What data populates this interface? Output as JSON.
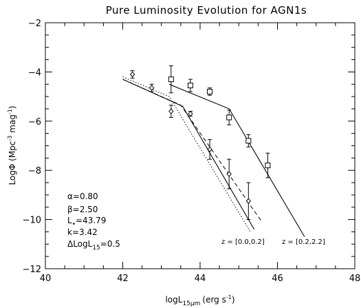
{
  "chart_data": {
    "type": "scatter",
    "title": "Pure Luminosity Evolution for AGN1s",
    "xlabel": {
      "base": "logL",
      "sub": "15μm",
      "unit": "(erg s",
      "unit_sup": "-1",
      "unit_end": ")"
    },
    "ylabel": {
      "base": "LogΦ (Mpc",
      "sup1": "-3",
      "mid": " mag",
      "sup2": "-1",
      "end": ")"
    },
    "xlim": [
      40,
      48
    ],
    "ylim": [
      -12,
      -2
    ],
    "xticks": [
      40,
      42,
      44,
      46,
      48
    ],
    "yticks": [
      -12,
      -10,
      -8,
      -6,
      -4,
      -2
    ],
    "grid": false,
    "legend": "none",
    "series": [
      {
        "name": "z = [0.0,0.2]",
        "marker": "diamond",
        "points": [
          {
            "x": 42.25,
            "y": -4.1,
            "err": 0.15
          },
          {
            "x": 42.75,
            "y": -4.65,
            "err": 0.15
          },
          {
            "x": 43.25,
            "y": -5.6,
            "err": 0.25
          },
          {
            "x": 43.75,
            "y": -5.7,
            "err": 0.1
          },
          {
            "x": 44.25,
            "y": -7.15,
            "err": 0.4
          },
          {
            "x": 44.75,
            "y": -8.15,
            "err": 0.6
          },
          {
            "x": 45.25,
            "y": -9.25,
            "err": 0.75
          }
        ],
        "fit_solid": [
          [
            42.0,
            -4.3
          ],
          [
            43.55,
            -5.4
          ],
          [
            45.4,
            -10.4
          ]
        ],
        "fit_dashed": [
          [
            42.0,
            -4.3
          ],
          [
            43.5,
            -5.35
          ],
          [
            45.6,
            -10.1
          ]
        ],
        "fit_dotted": [
          [
            42.0,
            -4.2
          ],
          [
            43.2,
            -5.0
          ],
          [
            45.3,
            -10.5
          ]
        ]
      },
      {
        "name": "z = [0.2,2.2]",
        "marker": "square",
        "points": [
          {
            "x": 43.25,
            "y": -4.3,
            "err": 0.55
          },
          {
            "x": 43.75,
            "y": -4.55,
            "err": 0.25
          },
          {
            "x": 44.25,
            "y": -4.8,
            "err": 0.15
          },
          {
            "x": 44.75,
            "y": -5.85,
            "err": 0.3
          },
          {
            "x": 45.25,
            "y": -6.8,
            "err": 0.25
          },
          {
            "x": 45.75,
            "y": -7.8,
            "err": 0.5
          }
        ],
        "fit_solid": [
          [
            43.2,
            -4.5
          ],
          [
            44.75,
            -5.5
          ],
          [
            46.7,
            -10.7
          ]
        ]
      }
    ],
    "annotations": {
      "params": [
        {
          "label": "α",
          "value": "=0.80"
        },
        {
          "label": "β",
          "value": "=2.50"
        },
        {
          "label": "L",
          "sub": "•",
          "value": "=43.79"
        },
        {
          "label": "k",
          "value": "=3.42"
        },
        {
          "label": "ΔLogL",
          "sub": "15",
          "value": "=0.5"
        }
      ],
      "redshift_labels": [
        "z = [0.0,0.2]",
        "z = [0.2,2.2]"
      ]
    }
  }
}
